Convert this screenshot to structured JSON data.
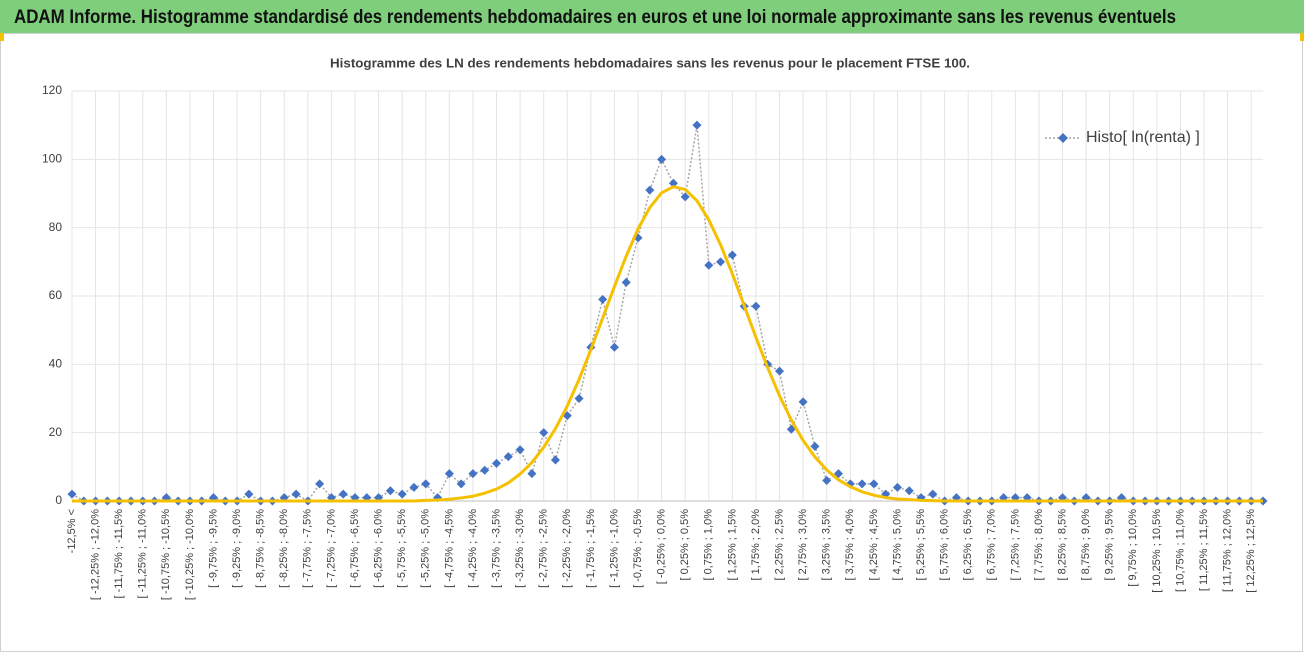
{
  "header": {
    "title": "ADAM Informe. Histogramme standardisé des rendements hebdomadaires en euros et une loi normale approximante sans les revenus éventuels"
  },
  "chart_data": {
    "type": "line",
    "title": "Histogramme des LN des rendements hebdomadaires sans les revenus pour le placement FTSE 100.",
    "categories": [
      "-12,5% <",
      null,
      "[ -12,25% ; -12,0%",
      null,
      "[ -11,75% ; -11,5%",
      null,
      "[ -11,25% ; -11,0%",
      null,
      "[ -10,75% ; -10,5%",
      null,
      "[ -10,25% ; -10,0%",
      null,
      "[ -9,75% ; -9,5%",
      null,
      "[ -9,25% ; -9,0%",
      null,
      "[ -8,75% ; -8,5%",
      null,
      "[ -8,25% ; -8,0%",
      null,
      "[ -7,75% ; -7,5%",
      null,
      "[ -7,25% ; -7,0%",
      null,
      "[ -6,75% ; -6,5%",
      null,
      "[ -6,25% ; -6,0%",
      null,
      "[ -5,75% ; -5,5%",
      null,
      "[ -5,25% ; -5,0%",
      null,
      "[ -4,75% ; -4,5%",
      null,
      "[ -4,25% ; -4,0%",
      null,
      "[ -3,75% ; -3,5%",
      null,
      "[ -3,25% ; -3,0%",
      null,
      "[ -2,75% ; -2,5%",
      null,
      "[ -2,25% ; -2,0%",
      null,
      "[ -1,75% ; -1,5%",
      null,
      "[ -1,25% ; -1,0%",
      null,
      "[ -0,75% ; -0,5%",
      null,
      "[ -0,25% ; 0,0%",
      null,
      "[ 0,25% ; 0,5%",
      null,
      "[ 0,75% ; 1,0%",
      null,
      "[ 1,25% ; 1,5%",
      null,
      "[ 1,75% ; 2,0%",
      null,
      "[ 2,25% ; 2,5%",
      null,
      "[ 2,75% ; 3,0%",
      null,
      "[ 3,25% ; 3,5%",
      null,
      "[ 3,75% ; 4,0%",
      null,
      "[ 4,25% ; 4,5%",
      null,
      "[ 4,75% ; 5,0%",
      null,
      "[ 5,25% ; 5,5%",
      null,
      "[ 5,75% ; 6,0%",
      null,
      "[ 6,25% ; 6,5%",
      null,
      "[ 6,75% ; 7,0%",
      null,
      "[ 7,25% ; 7,5%",
      null,
      "[ 7,75% ; 8,0%",
      null,
      "[ 8,25% ; 8,5%",
      null,
      "[ 8,75% ; 9,0%",
      null,
      "[ 9,25% ; 9,5%",
      null,
      "[ 9,75% ; 10,0%",
      null,
      "[ 10,25% ; 10,5%",
      null,
      "[ 10,75% ; 11,0%",
      null,
      "[ 11,25% ; 11,5%",
      null,
      "[ 11,75% ; 12,0%",
      null,
      "[ 12,25% ; 12,5%",
      null
    ],
    "series": [
      {
        "name": "Histo[ ln(renta) ]",
        "color": "#4472c4",
        "values": [
          2,
          0,
          0,
          0,
          0,
          0,
          0,
          0,
          1,
          0,
          0,
          0,
          1,
          0,
          0,
          2,
          0,
          0,
          1,
          2,
          0,
          5,
          1,
          2,
          1,
          1,
          1,
          3,
          2,
          4,
          5,
          1,
          8,
          5,
          8,
          9,
          11,
          13,
          15,
          8,
          20,
          12,
          25,
          30,
          45,
          59,
          45,
          64,
          77,
          91,
          100,
          93,
          89,
          110,
          69,
          70,
          72,
          57,
          57,
          40,
          38,
          21,
          29,
          16,
          6,
          8,
          5,
          5,
          5,
          2,
          4,
          3,
          1,
          2,
          0,
          1,
          0,
          0,
          0,
          1,
          1,
          1,
          0,
          0,
          1,
          0,
          1,
          0,
          0,
          1,
          0,
          0,
          0,
          0,
          0,
          0,
          0,
          0,
          0,
          0,
          0,
          0
        ]
      },
      {
        "color": "#f5c000",
        "values": [
          0,
          0,
          0,
          0,
          0,
          0,
          0,
          0,
          0,
          0,
          0,
          0,
          0,
          0,
          0,
          0,
          0,
          0,
          0,
          0,
          0,
          0,
          0,
          0,
          0,
          0,
          0,
          0,
          0,
          0,
          0.2,
          0.3,
          0.5,
          0.9,
          1.4,
          2.3,
          3.5,
          5.3,
          7.9,
          11.3,
          15.7,
          21.2,
          27.8,
          35.6,
          44.3,
          53.5,
          62.8,
          71.7,
          79.6,
          85.9,
          90.2,
          92,
          91.2,
          87.9,
          82.3,
          75,
          66.5,
          57.2,
          47.9,
          39,
          30.8,
          23.7,
          17.7,
          12.9,
          9.1,
          6.2,
          4.2,
          2.7,
          1.7,
          1,
          0.6,
          0.4,
          0.2,
          0.1,
          0,
          0,
          0,
          0,
          0,
          0,
          0,
          0,
          0,
          0,
          0,
          0,
          0,
          0,
          0,
          0,
          0,
          0,
          0,
          0,
          0,
          0,
          0,
          0,
          0,
          0,
          0,
          0
        ]
      }
    ],
    "ylim": [
      0,
      120
    ],
    "yticks": [
      0,
      20,
      40,
      60,
      80,
      100,
      120
    ],
    "grid": true,
    "legend": "top-right"
  }
}
